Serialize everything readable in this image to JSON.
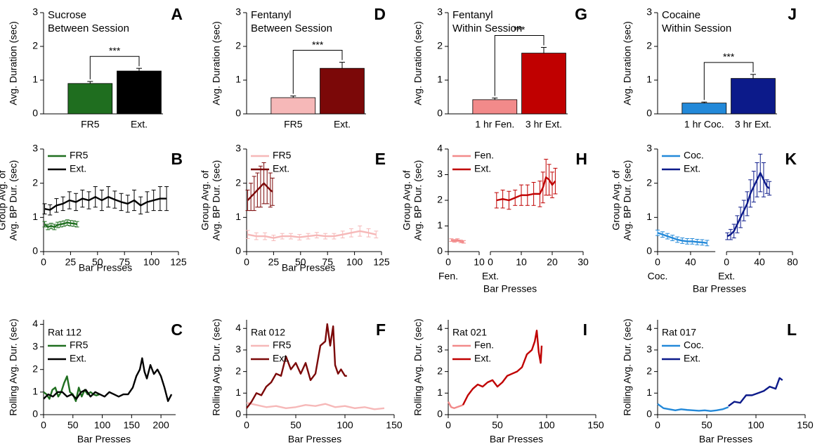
{
  "chart_data": [
    {
      "type": "bar",
      "panel_label": "A",
      "title": "Sucrose",
      "subtitle": "Between Session",
      "ylabel": [
        "Avg. Duration (sec)"
      ],
      "categories": [
        "FR5",
        "Ext."
      ],
      "values": [
        0.9,
        1.27
      ],
      "errors": [
        0.06,
        0.08
      ],
      "colors": [
        "#1f6e1f",
        "#000000"
      ],
      "annotation": "***",
      "ylim": [
        0,
        3
      ],
      "yticks": [
        0,
        1,
        2,
        3
      ]
    },
    {
      "type": "line",
      "panel_label": "B",
      "ylabel": [
        "Group Avg. of",
        "Avg. BP Dur. (sec)"
      ],
      "xlabel": "Bar Presses",
      "xlim": [
        0,
        125
      ],
      "xticks": [
        0,
        25,
        50,
        75,
        100,
        125
      ],
      "ylim": [
        0,
        3
      ],
      "yticks": [
        0,
        1,
        2,
        3
      ],
      "series": [
        {
          "name": "FR5",
          "color": "#1f6e1f",
          "x": [
            1,
            4,
            7,
            10,
            13,
            16,
            19,
            22,
            25,
            28,
            31
          ],
          "values": [
            0.8,
            0.72,
            0.75,
            0.72,
            0.78,
            0.8,
            0.82,
            0.85,
            0.83,
            0.82,
            0.8
          ],
          "errors": [
            0.08,
            0.08,
            0.08,
            0.08,
            0.08,
            0.08,
            0.08,
            0.08,
            0.08,
            0.08,
            0.08
          ]
        },
        {
          "name": "Ext.",
          "color": "#000000",
          "x": [
            1,
            6,
            12,
            18,
            24,
            30,
            36,
            42,
            48,
            54,
            60,
            66,
            72,
            78,
            84,
            90,
            96,
            102,
            108,
            114
          ],
          "values": [
            1.25,
            1.22,
            1.35,
            1.4,
            1.5,
            1.45,
            1.55,
            1.5,
            1.6,
            1.5,
            1.6,
            1.52,
            1.45,
            1.4,
            1.5,
            1.35,
            1.45,
            1.5,
            1.55,
            1.55
          ],
          "errors": [
            0.15,
            0.15,
            0.2,
            0.2,
            0.25,
            0.25,
            0.25,
            0.25,
            0.3,
            0.3,
            0.3,
            0.25,
            0.25,
            0.25,
            0.3,
            0.25,
            0.3,
            0.3,
            0.35,
            0.35
          ]
        }
      ]
    },
    {
      "type": "line",
      "panel_label": "C",
      "legend_title": "Rat 112",
      "ylabel": [
        "Rolling Avg. Dur. (sec)"
      ],
      "xlabel": "Bar Presses",
      "xlim": [
        0,
        225
      ],
      "xticks": [
        0,
        50,
        100,
        150,
        200
      ],
      "ylim": [
        0,
        4.2
      ],
      "yticks": [
        0,
        1,
        2,
        3,
        4
      ],
      "series": [
        {
          "name": "FR5",
          "color": "#1f6e1f",
          "x": [
            0,
            5,
            10,
            15,
            20,
            25,
            30,
            35,
            40,
            45,
            50,
            55,
            60,
            65,
            70,
            75,
            80,
            85,
            90,
            95
          ],
          "values": [
            1.0,
            0.9,
            0.7,
            1.1,
            1.2,
            0.8,
            1.0,
            1.4,
            1.7,
            1.0,
            0.9,
            0.6,
            1.2,
            0.8,
            1.1,
            0.9,
            1.0,
            0.9,
            0.85,
            0.9
          ]
        },
        {
          "name": "Ext.",
          "color": "#000000",
          "x": [
            0,
            8,
            16,
            24,
            32,
            40,
            48,
            56,
            64,
            72,
            80,
            88,
            96,
            104,
            112,
            120,
            128,
            136,
            144,
            152,
            158,
            164,
            168,
            172,
            176,
            182,
            188,
            194,
            200,
            206,
            212,
            218
          ],
          "values": [
            0.7,
            0.9,
            0.8,
            1.0,
            1.0,
            0.8,
            0.9,
            0.7,
            1.0,
            1.1,
            0.8,
            1.0,
            0.9,
            0.8,
            1.0,
            0.9,
            0.8,
            0.9,
            0.9,
            1.2,
            1.7,
            2.0,
            2.5,
            1.9,
            1.6,
            2.2,
            1.8,
            2.0,
            1.7,
            1.2,
            0.6,
            0.9
          ]
        }
      ]
    },
    {
      "type": "bar",
      "panel_label": "D",
      "title": "Fentanyl",
      "subtitle": "Between Session",
      "ylabel": [
        "Avg. Duration (sec)"
      ],
      "categories": [
        "FR5",
        "Ext."
      ],
      "values": [
        0.48,
        1.35
      ],
      "errors": [
        0.05,
        0.18
      ],
      "colors": [
        "#f6b8b8",
        "#7b0808"
      ],
      "annotation": "***",
      "ylim": [
        0,
        3
      ],
      "yticks": [
        0,
        1,
        2,
        3
      ]
    },
    {
      "type": "line",
      "panel_label": "E",
      "ylabel": [
        "Group Avg. of",
        "Avg. BP Dur. (sec)"
      ],
      "xlabel": "Bar Presses",
      "xlim": [
        0,
        125
      ],
      "xticks": [
        0,
        25,
        50,
        75,
        100,
        125
      ],
      "ylim": [
        0,
        3
      ],
      "yticks": [
        0,
        1,
        2,
        3
      ],
      "series": [
        {
          "name": "FR5",
          "color": "#f6b8b8",
          "x": [
            1,
            9,
            17,
            25,
            33,
            41,
            49,
            57,
            65,
            73,
            81,
            89,
            97,
            105,
            113,
            120
          ],
          "values": [
            0.5,
            0.45,
            0.45,
            0.4,
            0.45,
            0.45,
            0.42,
            0.45,
            0.48,
            0.45,
            0.45,
            0.5,
            0.55,
            0.6,
            0.55,
            0.5
          ],
          "errors": [
            0.12,
            0.1,
            0.1,
            0.08,
            0.08,
            0.08,
            0.08,
            0.08,
            0.08,
            0.08,
            0.08,
            0.1,
            0.12,
            0.15,
            0.12,
            0.1
          ]
        },
        {
          "name": "Ext.",
          "color": "#7b0808",
          "x": [
            1,
            4,
            7,
            10,
            13,
            16,
            19,
            22,
            24
          ],
          "values": [
            1.5,
            1.6,
            1.7,
            1.8,
            1.9,
            2.0,
            1.9,
            1.8,
            1.75
          ],
          "errors": [
            0.3,
            0.4,
            0.5,
            0.5,
            0.6,
            0.6,
            0.5,
            0.5,
            0.4
          ]
        }
      ]
    },
    {
      "type": "line",
      "panel_label": "F",
      "legend_title": "Rat 012",
      "ylabel": [
        "Rolling Avg. Dur. (sec)"
      ],
      "xlabel": "Bar Presses",
      "xlim": [
        0,
        150
      ],
      "xticks": [
        0,
        50,
        100,
        150
      ],
      "ylim": [
        0,
        4.4
      ],
      "yticks": [
        0,
        1,
        2,
        3,
        4
      ],
      "series": [
        {
          "name": "FR5",
          "color": "#f6b8b8",
          "x": [
            0,
            10,
            20,
            30,
            40,
            50,
            60,
            70,
            80,
            90,
            100,
            110,
            120,
            130,
            140
          ],
          "values": [
            0.55,
            0.45,
            0.35,
            0.4,
            0.3,
            0.35,
            0.45,
            0.4,
            0.5,
            0.35,
            0.4,
            0.3,
            0.35,
            0.25,
            0.3
          ]
        },
        {
          "name": "Ext.",
          "color": "#7b0808",
          "x": [
            0,
            5,
            10,
            15,
            20,
            25,
            30,
            35,
            40,
            45,
            50,
            55,
            60,
            65,
            70,
            75,
            80,
            82,
            85,
            88,
            90,
            93,
            96,
            100,
            102
          ],
          "values": [
            0.3,
            0.6,
            1.0,
            0.9,
            1.3,
            1.5,
            1.9,
            1.8,
            2.7,
            2.1,
            2.4,
            1.9,
            2.4,
            1.6,
            1.9,
            3.2,
            3.4,
            4.2,
            3.2,
            4.1,
            2.3,
            1.9,
            2.1,
            1.8,
            1.8
          ]
        }
      ]
    },
    {
      "type": "bar",
      "panel_label": "G",
      "title": "Fentanyl",
      "subtitle": "Within Session",
      "ylabel": [
        "Avg. Duration (sec)"
      ],
      "categories": [
        "1 hr Fen.",
        "3 hr Ext."
      ],
      "values": [
        0.42,
        1.8
      ],
      "errors": [
        0.05,
        0.17
      ],
      "colors": [
        "#f28a8a",
        "#c00000"
      ],
      "annotation": "***",
      "ylim": [
        0,
        3
      ],
      "yticks": [
        0,
        1,
        2,
        3
      ]
    },
    {
      "type": "line",
      "panel_label": "H",
      "ylabel": [
        "Group Avg. of",
        "Avg. BP Dur. (sec)"
      ],
      "xlabel": "Bar Presses",
      "ylim": [
        0,
        4
      ],
      "yticks": [
        0,
        1,
        2,
        3,
        4
      ],
      "series": [
        {
          "name": "Fen.",
          "xlabel": "Fen.",
          "color": "#f28a8a",
          "xlim": [
            0,
            10
          ],
          "xticks": [
            0,
            10
          ],
          "x": [
            1,
            2,
            3,
            4,
            5
          ],
          "values": [
            0.45,
            0.42,
            0.45,
            0.4,
            0.38
          ],
          "errors": [
            0.05,
            0.05,
            0.05,
            0.05,
            0.05
          ]
        },
        {
          "name": "Ext.",
          "xlabel": "Ext.",
          "color": "#c00000",
          "xlim": [
            0,
            30
          ],
          "xticks": [
            0,
            10,
            20,
            30
          ],
          "x": [
            2,
            4,
            6,
            8,
            10,
            12,
            14,
            16,
            17,
            18,
            19,
            20,
            21
          ],
          "values": [
            2.0,
            2.05,
            2.0,
            2.1,
            2.2,
            2.2,
            2.25,
            2.25,
            2.5,
            2.9,
            2.8,
            2.6,
            2.75
          ],
          "errors": [
            0.3,
            0.35,
            0.35,
            0.3,
            0.4,
            0.4,
            0.45,
            0.5,
            0.6,
            0.7,
            0.6,
            0.5,
            0.5
          ]
        }
      ]
    },
    {
      "type": "line",
      "panel_label": "I",
      "legend_title": "Rat 021",
      "ylabel": [
        "Rolling Avg. Dur. (sec)"
      ],
      "xlabel": "Bar Presses",
      "xlim": [
        0,
        150
      ],
      "xticks": [
        0,
        50,
        100,
        150
      ],
      "ylim": [
        0,
        4.4
      ],
      "yticks": [
        0,
        1,
        2,
        3,
        4
      ],
      "series": [
        {
          "name": "Fen.",
          "color": "#f28a8a",
          "x": [
            0,
            3,
            6,
            9,
            12,
            15
          ],
          "values": [
            0.6,
            0.35,
            0.3,
            0.35,
            0.4,
            0.45
          ]
        },
        {
          "name": "Ext.",
          "color": "#c00000",
          "x": [
            15,
            20,
            25,
            30,
            35,
            40,
            45,
            50,
            55,
            60,
            65,
            70,
            75,
            80,
            85,
            88,
            90,
            92,
            94,
            95
          ],
          "values": [
            0.45,
            0.9,
            1.2,
            1.4,
            1.3,
            1.5,
            1.6,
            1.3,
            1.5,
            1.8,
            1.9,
            2.0,
            2.2,
            2.8,
            3.0,
            3.4,
            3.9,
            2.9,
            2.4,
            3.2
          ]
        }
      ]
    },
    {
      "type": "bar",
      "panel_label": "J",
      "title": "Cocaine",
      "subtitle": "Within Session",
      "ylabel": [
        "Avg. Duration (sec)"
      ],
      "categories": [
        "1 hr Coc.",
        "3 hr Ext."
      ],
      "values": [
        0.32,
        1.05
      ],
      "errors": [
        0.03,
        0.12
      ],
      "colors": [
        "#2389d9",
        "#0c1a8a"
      ],
      "annotation": "***",
      "ylim": [
        0,
        3
      ],
      "yticks": [
        0,
        1,
        2,
        3
      ]
    },
    {
      "type": "line",
      "panel_label": "K",
      "ylabel": [
        "Group Avg. of",
        "Avg. BP Dur. (sec)"
      ],
      "xlabel": "Bar Presses",
      "ylim": [
        0,
        3
      ],
      "yticks": [
        0,
        1,
        2,
        3
      ],
      "series": [
        {
          "name": "Coc.",
          "xlabel": "Coc.",
          "color": "#2389d9",
          "xlim": [
            0,
            70
          ],
          "xticks": [
            0,
            40
          ],
          "x": [
            0,
            6,
            12,
            18,
            24,
            30,
            36,
            42,
            48,
            54,
            60
          ],
          "values": [
            0.55,
            0.5,
            0.45,
            0.4,
            0.35,
            0.32,
            0.3,
            0.3,
            0.28,
            0.27,
            0.25
          ],
          "errors": [
            0.08,
            0.08,
            0.08,
            0.08,
            0.08,
            0.08,
            0.08,
            0.08,
            0.08,
            0.08,
            0.08
          ]
        },
        {
          "name": "Ext.",
          "xlabel": "Ext.",
          "color": "#0c1a8a",
          "xlim": [
            0,
            80
          ],
          "xticks": [
            0,
            40,
            80
          ],
          "x": [
            1,
            5,
            9,
            13,
            17,
            21,
            25,
            29,
            33,
            37,
            41,
            45,
            49,
            52
          ],
          "values": [
            0.45,
            0.5,
            0.6,
            0.8,
            1.0,
            1.2,
            1.4,
            1.7,
            1.9,
            2.1,
            2.3,
            2.1,
            1.9,
            1.85
          ],
          "errors": [
            0.1,
            0.15,
            0.2,
            0.25,
            0.3,
            0.3,
            0.35,
            0.4,
            0.45,
            0.5,
            0.55,
            0.5,
            0.2,
            0.2
          ]
        }
      ]
    },
    {
      "type": "line",
      "panel_label": "L",
      "legend_title": "Rat 017",
      "ylabel": [
        "Rolling Avg. Dur. (sec)"
      ],
      "xlabel": "Bar Presses",
      "xlim": [
        0,
        150
      ],
      "xticks": [
        0,
        50,
        100,
        150
      ],
      "ylim": [
        0,
        4.4
      ],
      "yticks": [
        0,
        1,
        2,
        3,
        4
      ],
      "series": [
        {
          "name": "Coc.",
          "color": "#2389d9",
          "x": [
            0,
            6,
            12,
            18,
            24,
            30,
            36,
            42,
            48,
            54,
            60,
            66,
            72
          ],
          "values": [
            0.5,
            0.3,
            0.25,
            0.2,
            0.25,
            0.22,
            0.2,
            0.18,
            0.2,
            0.17,
            0.2,
            0.25,
            0.35
          ]
        },
        {
          "name": "Ext.",
          "color": "#0c1a8a",
          "x": [
            72,
            78,
            84,
            90,
            96,
            102,
            108,
            114,
            120,
            124,
            127
          ],
          "values": [
            0.4,
            0.6,
            0.55,
            0.9,
            0.9,
            1.0,
            1.1,
            1.3,
            1.2,
            1.7,
            1.6
          ]
        }
      ]
    }
  ]
}
